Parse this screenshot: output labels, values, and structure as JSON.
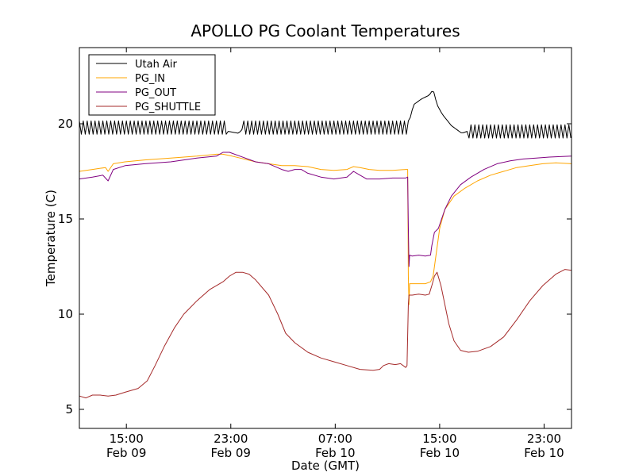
{
  "chart_data": {
    "type": "line",
    "title": "APOLLO PG Coolant Temperatures",
    "xlabel": "Date (GMT)",
    "ylabel": "Temperature (C)",
    "xlim": [
      0,
      37.7
    ],
    "ylim": [
      4,
      24
    ],
    "yticks": [
      5,
      10,
      15,
      20
    ],
    "xticks": [
      {
        "x": 3.6,
        "line1": "15:00",
        "line2": "Feb 09"
      },
      {
        "x": 11.6,
        "line1": "23:00",
        "line2": "Feb 09"
      },
      {
        "x": 19.6,
        "line1": "07:00",
        "line2": "Feb 10"
      },
      {
        "x": 27.6,
        "line1": "15:00",
        "line2": "Feb 10"
      },
      {
        "x": 35.6,
        "line1": "23:00",
        "line2": "Feb 10"
      }
    ],
    "legend_position": "top-left",
    "grid": false,
    "series": [
      {
        "name": "Utah Air",
        "color": "#000000",
        "style": "oscillating",
        "base": [
          [
            0,
            19.8
          ],
          [
            11.3,
            19.8
          ],
          [
            11.4,
            19.6
          ],
          [
            12.2,
            19.5
          ],
          [
            12.6,
            19.8
          ],
          [
            25.2,
            19.8
          ],
          [
            25.3,
            20.2
          ],
          [
            25.6,
            21.0
          ],
          [
            26.2,
            21.3
          ],
          [
            26.8,
            21.5
          ],
          [
            27.1,
            21.8
          ],
          [
            27.4,
            21.0
          ],
          [
            27.8,
            20.5
          ],
          [
            28.5,
            19.9
          ],
          [
            29.3,
            19.5
          ],
          [
            29.7,
            19.6
          ],
          [
            37.7,
            19.6
          ]
        ],
        "amplitude": 0.35,
        "period": 0.3,
        "quiet_ranges": [
          [
            11.3,
            12.6
          ],
          [
            25.2,
            29.7
          ]
        ]
      },
      {
        "name": "PG_IN",
        "color": "#FFA500",
        "style": "line",
        "points": [
          [
            0,
            17.5
          ],
          [
            1.0,
            17.6
          ],
          [
            2.0,
            17.7
          ],
          [
            2.2,
            17.5
          ],
          [
            2.6,
            17.9
          ],
          [
            3.5,
            18.0
          ],
          [
            5.0,
            18.1
          ],
          [
            7.0,
            18.2
          ],
          [
            9.0,
            18.3
          ],
          [
            10.5,
            18.4
          ],
          [
            11.0,
            18.4
          ],
          [
            11.7,
            18.3
          ],
          [
            12.3,
            18.2
          ],
          [
            13.5,
            18.0
          ],
          [
            14.5,
            17.9
          ],
          [
            15.5,
            17.8
          ],
          [
            16.5,
            17.8
          ],
          [
            17.5,
            17.75
          ],
          [
            18.5,
            17.6
          ],
          [
            19.5,
            17.55
          ],
          [
            20.5,
            17.6
          ],
          [
            21.0,
            17.75
          ],
          [
            21.5,
            17.7
          ],
          [
            22.2,
            17.6
          ],
          [
            23.0,
            17.55
          ],
          [
            24.0,
            17.55
          ],
          [
            25.0,
            17.6
          ],
          [
            25.15,
            17.6
          ],
          [
            25.2,
            12.0
          ],
          [
            25.25,
            10.5
          ],
          [
            25.3,
            11.6
          ],
          [
            25.5,
            11.6
          ],
          [
            26.0,
            11.6
          ],
          [
            26.5,
            11.6
          ],
          [
            26.9,
            11.7
          ],
          [
            27.1,
            12.0
          ],
          [
            27.3,
            13.0
          ],
          [
            27.6,
            14.5
          ],
          [
            28.0,
            15.5
          ],
          [
            28.7,
            16.2
          ],
          [
            29.5,
            16.6
          ],
          [
            30.5,
            17.0
          ],
          [
            31.5,
            17.3
          ],
          [
            32.5,
            17.5
          ],
          [
            33.5,
            17.7
          ],
          [
            34.5,
            17.8
          ],
          [
            35.5,
            17.9
          ],
          [
            36.5,
            17.95
          ],
          [
            37.7,
            17.9
          ]
        ]
      },
      {
        "name": "PG_OUT",
        "color": "#800080",
        "style": "line",
        "points": [
          [
            0,
            17.1
          ],
          [
            1.0,
            17.2
          ],
          [
            1.8,
            17.3
          ],
          [
            2.2,
            17.0
          ],
          [
            2.6,
            17.6
          ],
          [
            3.5,
            17.8
          ],
          [
            5.0,
            17.9
          ],
          [
            7.0,
            18.0
          ],
          [
            9.0,
            18.2
          ],
          [
            10.5,
            18.3
          ],
          [
            11.0,
            18.5
          ],
          [
            11.5,
            18.5
          ],
          [
            12.3,
            18.3
          ],
          [
            13.5,
            18.0
          ],
          [
            14.5,
            17.9
          ],
          [
            15.5,
            17.6
          ],
          [
            16.0,
            17.5
          ],
          [
            16.5,
            17.6
          ],
          [
            17.0,
            17.6
          ],
          [
            17.5,
            17.4
          ],
          [
            18.5,
            17.2
          ],
          [
            19.5,
            17.1
          ],
          [
            20.5,
            17.2
          ],
          [
            21.0,
            17.5
          ],
          [
            21.5,
            17.3
          ],
          [
            22.0,
            17.1
          ],
          [
            23.0,
            17.1
          ],
          [
            24.0,
            17.15
          ],
          [
            25.0,
            17.15
          ],
          [
            25.15,
            17.2
          ],
          [
            25.2,
            14.6
          ],
          [
            25.25,
            12.5
          ],
          [
            25.3,
            13.1
          ],
          [
            25.5,
            13.05
          ],
          [
            26.0,
            13.1
          ],
          [
            26.5,
            13.05
          ],
          [
            26.9,
            13.1
          ],
          [
            27.0,
            13.6
          ],
          [
            27.2,
            14.3
          ],
          [
            27.5,
            14.5
          ],
          [
            28.0,
            15.5
          ],
          [
            28.5,
            16.2
          ],
          [
            29.2,
            16.8
          ],
          [
            30.0,
            17.2
          ],
          [
            31.0,
            17.6
          ],
          [
            32.0,
            17.9
          ],
          [
            33.0,
            18.05
          ],
          [
            34.0,
            18.15
          ],
          [
            35.0,
            18.2
          ],
          [
            36.0,
            18.25
          ],
          [
            37.7,
            18.3
          ]
        ]
      },
      {
        "name": "PG_SHUTTLE",
        "color": "#A52A2A",
        "style": "line",
        "points": [
          [
            0,
            5.7
          ],
          [
            0.5,
            5.6
          ],
          [
            1.0,
            5.75
          ],
          [
            1.6,
            5.75
          ],
          [
            2.2,
            5.7
          ],
          [
            2.8,
            5.75
          ],
          [
            3.5,
            5.9
          ],
          [
            4.5,
            6.1
          ],
          [
            5.2,
            6.5
          ],
          [
            5.8,
            7.3
          ],
          [
            6.5,
            8.3
          ],
          [
            7.3,
            9.3
          ],
          [
            8.0,
            10.0
          ],
          [
            9.0,
            10.7
          ],
          [
            10.0,
            11.3
          ],
          [
            11.0,
            11.7
          ],
          [
            11.5,
            12.0
          ],
          [
            12.0,
            12.2
          ],
          [
            12.5,
            12.2
          ],
          [
            13.0,
            12.1
          ],
          [
            13.5,
            11.8
          ],
          [
            14.5,
            11.0
          ],
          [
            15.2,
            10.0
          ],
          [
            15.8,
            9.0
          ],
          [
            16.5,
            8.5
          ],
          [
            17.5,
            8.0
          ],
          [
            18.5,
            7.7
          ],
          [
            19.5,
            7.5
          ],
          [
            20.5,
            7.3
          ],
          [
            21.5,
            7.1
          ],
          [
            22.5,
            7.05
          ],
          [
            23.0,
            7.1
          ],
          [
            23.3,
            7.3
          ],
          [
            23.7,
            7.4
          ],
          [
            24.2,
            7.35
          ],
          [
            24.6,
            7.4
          ],
          [
            25.0,
            7.2
          ],
          [
            25.1,
            7.3
          ],
          [
            25.2,
            10.5
          ],
          [
            25.25,
            11.0
          ],
          [
            25.5,
            11.0
          ],
          [
            26.0,
            11.05
          ],
          [
            26.5,
            11.0
          ],
          [
            26.8,
            11.05
          ],
          [
            27.0,
            11.5
          ],
          [
            27.2,
            12.0
          ],
          [
            27.4,
            12.2
          ],
          [
            27.7,
            11.5
          ],
          [
            28.0,
            10.5
          ],
          [
            28.3,
            9.5
          ],
          [
            28.7,
            8.6
          ],
          [
            29.2,
            8.1
          ],
          [
            29.8,
            8.0
          ],
          [
            30.5,
            8.05
          ],
          [
            31.5,
            8.3
          ],
          [
            32.5,
            8.8
          ],
          [
            33.5,
            9.7
          ],
          [
            34.5,
            10.7
          ],
          [
            35.5,
            11.5
          ],
          [
            36.5,
            12.1
          ],
          [
            37.2,
            12.35
          ],
          [
            37.7,
            12.3
          ]
        ]
      }
    ]
  }
}
